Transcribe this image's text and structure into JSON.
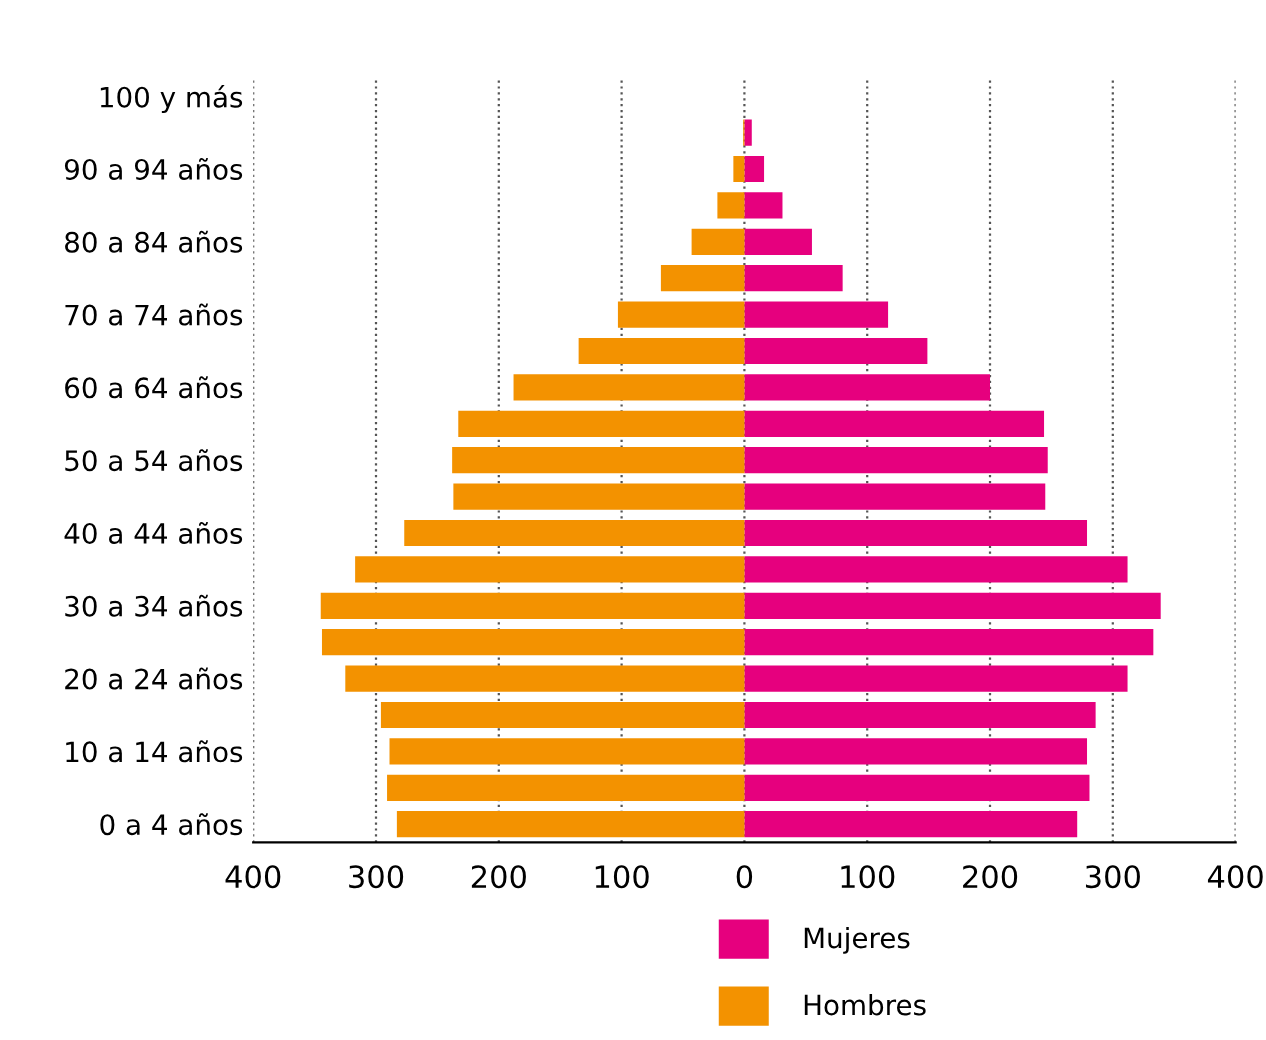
{
  "chart_data": {
    "type": "bar",
    "orientation": "horizontal",
    "categories": [
      "100 y más",
      null,
      "90 a 94 años",
      null,
      "80 a 84 años",
      null,
      "70 a 74 años",
      null,
      "60 a 64 años",
      null,
      "50 a 54 años",
      null,
      "40 a 44 años",
      null,
      "30 a 34 años",
      null,
      "20 a 24 años",
      null,
      "10 a 14 años",
      null,
      "0 a 4 años"
    ],
    "series": [
      {
        "name": "Mujeres",
        "color": "#e6007e",
        "values": [
          0,
          6,
          16,
          31,
          55,
          80,
          117,
          149,
          200,
          244,
          247,
          245,
          279,
          312,
          339,
          333,
          312,
          286,
          279,
          281,
          271
        ]
      },
      {
        "name": "Hombres",
        "color": "#f39200",
        "values": [
          0,
          -1,
          -9,
          -22,
          -43,
          -68,
          -103,
          -135,
          -188,
          -233,
          -238,
          -237,
          -277,
          -317,
          -345,
          -344,
          -325,
          -296,
          -289,
          -291,
          -283
        ]
      }
    ],
    "xlim": [
      -400,
      400
    ],
    "xticks": [
      {
        "value": -400,
        "label": "400"
      },
      {
        "value": -300,
        "label": "300"
      },
      {
        "value": -200,
        "label": "200"
      },
      {
        "value": -100,
        "label": "100"
      },
      0,
      100,
      200,
      300,
      400
    ],
    "grid": "x",
    "legend": "bottom",
    "stacked": true
  }
}
